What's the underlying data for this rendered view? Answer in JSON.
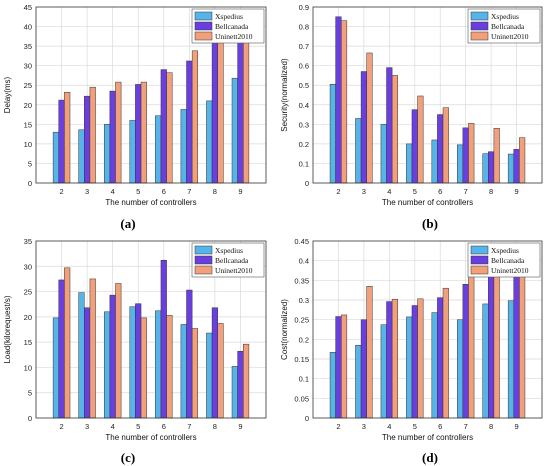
{
  "chart_data": [
    {
      "type": "bar",
      "caption": "(a)",
      "categories": [
        "2",
        "3",
        "4",
        "5",
        "6",
        "7",
        "8",
        "9"
      ],
      "series": [
        {
          "name": "Xspedius",
          "values": [
            13,
            13.6,
            15,
            16,
            17.2,
            18.8,
            21,
            26.8
          ]
        },
        {
          "name": "Bellcanada",
          "values": [
            21.2,
            22.2,
            23.5,
            25.2,
            29,
            31.2,
            40,
            40
          ]
        },
        {
          "name": "Uninett2010",
          "values": [
            23.2,
            24.5,
            25.8,
            25.8,
            28.2,
            33.8,
            40,
            40
          ]
        }
      ],
      "xlabel": "The number of controllers",
      "ylabel": "Delay(ms)",
      "ylim": [
        0,
        45
      ],
      "yticks": [
        0,
        5,
        10,
        15,
        20,
        25,
        30,
        35,
        40,
        45
      ],
      "grid": true,
      "legend_position": "top-right"
    },
    {
      "type": "bar",
      "caption": "(b)",
      "categories": [
        "2",
        "3",
        "4",
        "5",
        "6",
        "7",
        "8",
        "9"
      ],
      "series": [
        {
          "name": "Xspedius",
          "values": [
            0.505,
            0.33,
            0.3,
            0.2,
            0.22,
            0.195,
            0.15,
            0.148
          ]
        },
        {
          "name": "Bellcanada",
          "values": [
            0.85,
            0.57,
            0.59,
            0.375,
            0.35,
            0.282,
            0.16,
            0.172
          ]
        },
        {
          "name": "Uninett2010",
          "values": [
            0.83,
            0.665,
            0.55,
            0.445,
            0.385,
            0.305,
            0.28,
            0.232
          ]
        }
      ],
      "xlabel": "The number of controllers",
      "ylabel": "Security(normalized)",
      "ylim": [
        0,
        0.9
      ],
      "yticks": [
        "0",
        "0.1",
        "0.2",
        "0.3",
        "0.4",
        "0.5",
        "0.6",
        "0.7",
        "0.8",
        "0.9"
      ],
      "grid": true,
      "legend_position": "top-right"
    },
    {
      "type": "bar",
      "caption": "(c)",
      "categories": [
        "2",
        "3",
        "4",
        "5",
        "6",
        "7",
        "8",
        "9"
      ],
      "series": [
        {
          "name": "Xspedius",
          "values": [
            19.8,
            24.8,
            21,
            22,
            21.2,
            18.5,
            16.8,
            10.2
          ]
        },
        {
          "name": "Bellcanada",
          "values": [
            27.3,
            21.8,
            24.3,
            22.6,
            31.2,
            25.3,
            21.8,
            13.2
          ]
        },
        {
          "name": "Uninett2010",
          "values": [
            29.7,
            27.5,
            26.6,
            19.8,
            20.3,
            17.7,
            18.7,
            14.6
          ]
        }
      ],
      "xlabel": "The number of controllers",
      "ylabel": "Load(kilorequest/s)",
      "ylim": [
        0,
        35
      ],
      "yticks": [
        0,
        5,
        10,
        15,
        20,
        25,
        30,
        35
      ],
      "grid": true,
      "legend_position": "top-right"
    },
    {
      "type": "bar",
      "caption": "(d)",
      "categories": [
        "2",
        "3",
        "4",
        "5",
        "6",
        "7",
        "8",
        "9"
      ],
      "series": [
        {
          "name": "Xspedius",
          "values": [
            0.167,
            0.185,
            0.237,
            0.257,
            0.268,
            0.25,
            0.29,
            0.298
          ]
        },
        {
          "name": "Bellcanada",
          "values": [
            0.258,
            0.25,
            0.296,
            0.286,
            0.306,
            0.34,
            0.4,
            0.4
          ]
        },
        {
          "name": "Uninett2010",
          "values": [
            0.262,
            0.335,
            0.302,
            0.303,
            0.33,
            0.39,
            0.4,
            0.4
          ]
        }
      ],
      "xlabel": "The number of controllers",
      "ylabel": "Cost(normalized)",
      "ylim": [
        0,
        0.45
      ],
      "yticks": [
        "0",
        "0.05",
        "0.1",
        "0.15",
        "0.2",
        "0.25",
        "0.3",
        "0.35",
        "0.4",
        "0.45"
      ],
      "grid": true,
      "legend_position": "top-right"
    }
  ],
  "colors": {
    "series": [
      "#56b4e9",
      "#6a3fe0",
      "#f2a07b"
    ],
    "axis": "#333333",
    "grid": "#d9d9d9"
  }
}
